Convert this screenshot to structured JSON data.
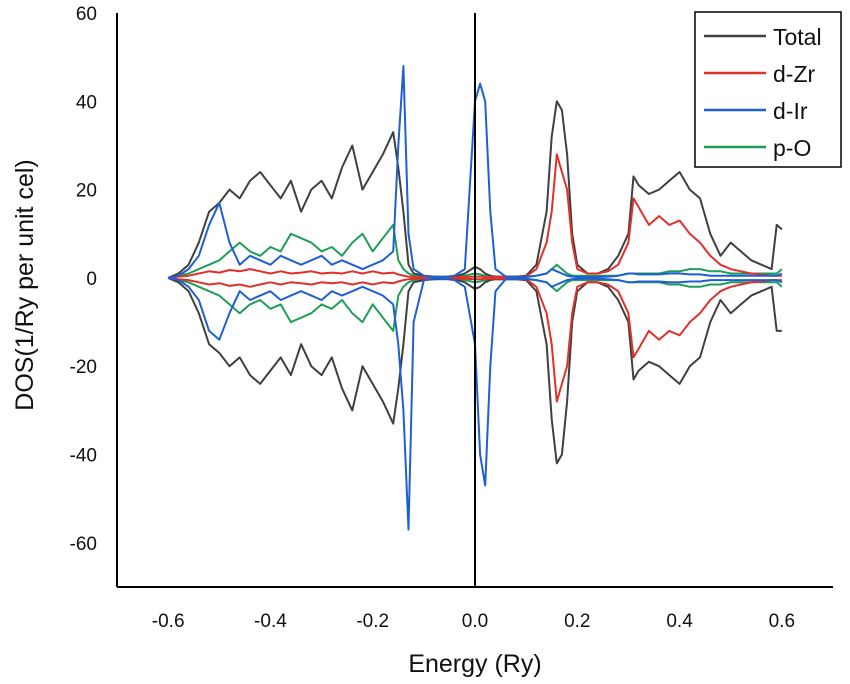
{
  "chart_data": {
    "type": "line",
    "title": "",
    "xlabel": "Energy (Ry)",
    "ylabel": "DOS(1/Ry per unit cel)",
    "xlim": [
      -0.7,
      0.7
    ],
    "ylim": [
      -70,
      60
    ],
    "xticks": [
      -0.6,
      -0.4,
      -0.2,
      0.0,
      0.2,
      0.4,
      0.6
    ],
    "xtick_labels": [
      "-0.6",
      "-0.4",
      "-0.2",
      "0.0",
      "0.2",
      "0.4",
      "0.6"
    ],
    "yticks": [
      -60,
      -40,
      -20,
      0,
      20,
      40,
      60
    ],
    "ytick_labels": [
      "-60",
      "-40",
      "-20",
      "0",
      "20",
      "40",
      "60"
    ],
    "grid": false,
    "legend_position": "top-right",
    "fermi_level_line": 0.0,
    "x": [
      -0.6,
      -0.58,
      -0.56,
      -0.54,
      -0.52,
      -0.5,
      -0.48,
      -0.46,
      -0.44,
      -0.42,
      -0.4,
      -0.38,
      -0.36,
      -0.34,
      -0.32,
      -0.3,
      -0.28,
      -0.26,
      -0.24,
      -0.22,
      -0.2,
      -0.18,
      -0.16,
      -0.15,
      -0.14,
      -0.13,
      -0.12,
      -0.1,
      -0.08,
      -0.06,
      -0.04,
      -0.02,
      0.0,
      0.01,
      0.02,
      0.03,
      0.04,
      0.06,
      0.08,
      0.1,
      0.12,
      0.14,
      0.15,
      0.16,
      0.17,
      0.18,
      0.19,
      0.2,
      0.22,
      0.24,
      0.26,
      0.28,
      0.3,
      0.31,
      0.32,
      0.34,
      0.36,
      0.38,
      0.4,
      0.42,
      0.44,
      0.46,
      0.48,
      0.5,
      0.52,
      0.54,
      0.56,
      0.58,
      0.59,
      0.6
    ],
    "series": [
      {
        "name": "Total",
        "color": "#404040",
        "up": [
          0,
          1,
          3,
          8,
          15,
          17,
          20,
          18,
          22,
          24,
          21,
          18,
          22,
          15,
          20,
          22,
          18,
          25,
          30,
          20,
          24,
          28,
          33,
          25,
          15,
          3,
          1,
          0.5,
          0.3,
          0.2,
          0.3,
          1,
          2.5,
          2,
          1,
          0.5,
          0.3,
          0.3,
          0.3,
          0.5,
          3,
          15,
          32,
          40,
          38,
          28,
          10,
          3,
          1,
          1,
          2,
          5,
          10,
          23,
          21,
          19,
          20,
          22,
          24,
          20,
          18,
          10,
          5,
          8,
          6,
          4,
          3,
          2,
          12,
          11
        ],
        "down": [
          0,
          -1,
          -3,
          -8,
          -15,
          -17,
          -20,
          -18,
          -22,
          -24,
          -21,
          -18,
          -22,
          -15,
          -20,
          -22,
          -18,
          -25,
          -30,
          -20,
          -24,
          -28,
          -33,
          -25,
          -15,
          -3,
          -1,
          -0.5,
          -0.3,
          -0.2,
          -0.3,
          -1,
          -2.5,
          -2,
          -1,
          -0.5,
          -0.3,
          -0.3,
          -0.3,
          -0.5,
          -3,
          -15,
          -32,
          -42,
          -40,
          -28,
          -10,
          -3,
          -1,
          -1,
          -2,
          -5,
          -10,
          -23,
          -21,
          -19,
          -20,
          -22,
          -24,
          -20,
          -18,
          -10,
          -5,
          -8,
          -6,
          -4,
          -3,
          -2,
          -12,
          -12
        ]
      },
      {
        "name": "d-Zr",
        "color": "#e0302b",
        "up": [
          0,
          0.3,
          0.5,
          1,
          1.5,
          1.2,
          1.8,
          1.5,
          2,
          1.5,
          1,
          1.5,
          1,
          1.2,
          1.5,
          1,
          1.2,
          1,
          1.5,
          1,
          1.5,
          1,
          1.2,
          0.8,
          0.5,
          0.3,
          0.2,
          0.1,
          0.1,
          0.1,
          0.1,
          0.2,
          0.3,
          0.3,
          0.2,
          0.2,
          0.2,
          0.2,
          0.2,
          0.3,
          2,
          8,
          15,
          28,
          24,
          20,
          8,
          2,
          1,
          1,
          1.5,
          3,
          8,
          18,
          16,
          12,
          14,
          12,
          13,
          10,
          8,
          5,
          3,
          2,
          1.5,
          1,
          0.8,
          0.5,
          0.5,
          0.5
        ],
        "down": [
          0,
          -0.3,
          -0.5,
          -1,
          -1.5,
          -1.2,
          -1.8,
          -1.5,
          -2,
          -1.5,
          -1,
          -1.5,
          -1,
          -1.2,
          -1.5,
          -1,
          -1.2,
          -1,
          -1.5,
          -1,
          -1.5,
          -1,
          -1.2,
          -0.8,
          -0.5,
          -0.3,
          -0.2,
          -0.1,
          -0.1,
          -0.1,
          -0.1,
          -0.2,
          -0.3,
          -0.3,
          -0.2,
          -0.2,
          -0.2,
          -0.2,
          -0.2,
          -0.3,
          -2,
          -8,
          -15,
          -28,
          -24,
          -20,
          -8,
          -2,
          -1,
          -1,
          -1.5,
          -3,
          -8,
          -18,
          -16,
          -12,
          -14,
          -12,
          -13,
          -10,
          -8,
          -5,
          -3,
          -2,
          -1.5,
          -1,
          -0.8,
          -0.5,
          -0.5,
          -0.5
        ]
      },
      {
        "name": "d-Ir",
        "color": "#1f5fd4",
        "up": [
          0,
          0.5,
          2,
          5,
          12,
          17,
          8,
          3,
          5,
          4,
          3,
          5,
          4,
          3,
          4,
          5,
          3,
          4,
          3,
          2,
          3,
          4,
          6,
          30,
          48,
          10,
          2,
          0.5,
          0.2,
          0.2,
          0.5,
          2,
          40,
          44,
          40,
          15,
          2,
          0.3,
          0.2,
          0.2,
          0.5,
          1,
          2,
          1.5,
          1,
          0.5,
          0.3,
          0.2,
          0.2,
          0.2,
          0.3,
          0.5,
          1,
          1,
          0.8,
          0.8,
          0.8,
          1,
          1,
          0.8,
          0.8,
          0.5,
          0.5,
          0.5,
          0.5,
          0.5,
          0.5,
          0.5,
          0.5,
          1
        ],
        "down": [
          0,
          -0.5,
          -2,
          -5,
          -12,
          -14,
          -8,
          -3,
          -5,
          -4,
          -3,
          -5,
          -4,
          -3,
          -4,
          -5,
          -3,
          -4,
          -3,
          -2,
          -3,
          -4,
          -6,
          -15,
          -30,
          -57,
          -10,
          -0.5,
          -0.2,
          -0.2,
          -0.5,
          -2,
          -15,
          -40,
          -47,
          -20,
          -3,
          -0.3,
          -0.2,
          -0.2,
          -0.5,
          -1,
          -2,
          -1.5,
          -1,
          -0.5,
          -0.3,
          -0.2,
          -0.2,
          -0.2,
          -0.3,
          -0.5,
          -1,
          -1,
          -0.8,
          -0.8,
          -0.8,
          -1,
          -1,
          -0.8,
          -0.8,
          -0.5,
          -0.5,
          -0.5,
          -0.5,
          -0.5,
          -0.5,
          -0.5,
          -0.5,
          -1
        ]
      },
      {
        "name": "p-O",
        "color": "#1f9e55",
        "up": [
          0,
          0.5,
          1,
          2,
          3,
          4,
          6,
          8,
          6,
          5,
          7,
          6,
          10,
          9,
          8,
          6,
          7,
          5,
          8,
          10,
          6,
          9,
          12,
          4,
          2,
          1,
          0.5,
          0.3,
          0.3,
          0.3,
          0.3,
          0.5,
          1,
          0.8,
          0.5,
          0.3,
          0.3,
          0.3,
          0.3,
          0.3,
          0.5,
          1,
          2,
          3,
          2,
          1,
          0.5,
          0.5,
          0.5,
          0.5,
          0.5,
          0.5,
          1,
          1,
          1,
          1,
          1,
          1.5,
          1.5,
          2,
          2,
          1.5,
          1.5,
          1,
          1,
          1,
          1,
          1,
          1,
          2
        ],
        "down": [
          0,
          -0.5,
          -1,
          -2,
          -3,
          -4,
          -6,
          -8,
          -6,
          -5,
          -7,
          -6,
          -10,
          -9,
          -8,
          -6,
          -7,
          -5,
          -8,
          -10,
          -6,
          -9,
          -12,
          -4,
          -2,
          -1,
          -0.5,
          -0.3,
          -0.3,
          -0.3,
          -0.3,
          -0.5,
          -1,
          -0.8,
          -0.5,
          -0.3,
          -0.3,
          -0.3,
          -0.3,
          -0.3,
          -0.5,
          -1,
          -2,
          -3,
          -2,
          -1,
          -0.5,
          -0.5,
          -0.5,
          -0.5,
          -0.5,
          -0.5,
          -1,
          -1,
          -1,
          -1,
          -1,
          -1.5,
          -1.5,
          -2,
          -2,
          -1.5,
          -1.5,
          -1,
          -1,
          -1,
          -1,
          -1,
          -1,
          -2
        ]
      }
    ]
  }
}
